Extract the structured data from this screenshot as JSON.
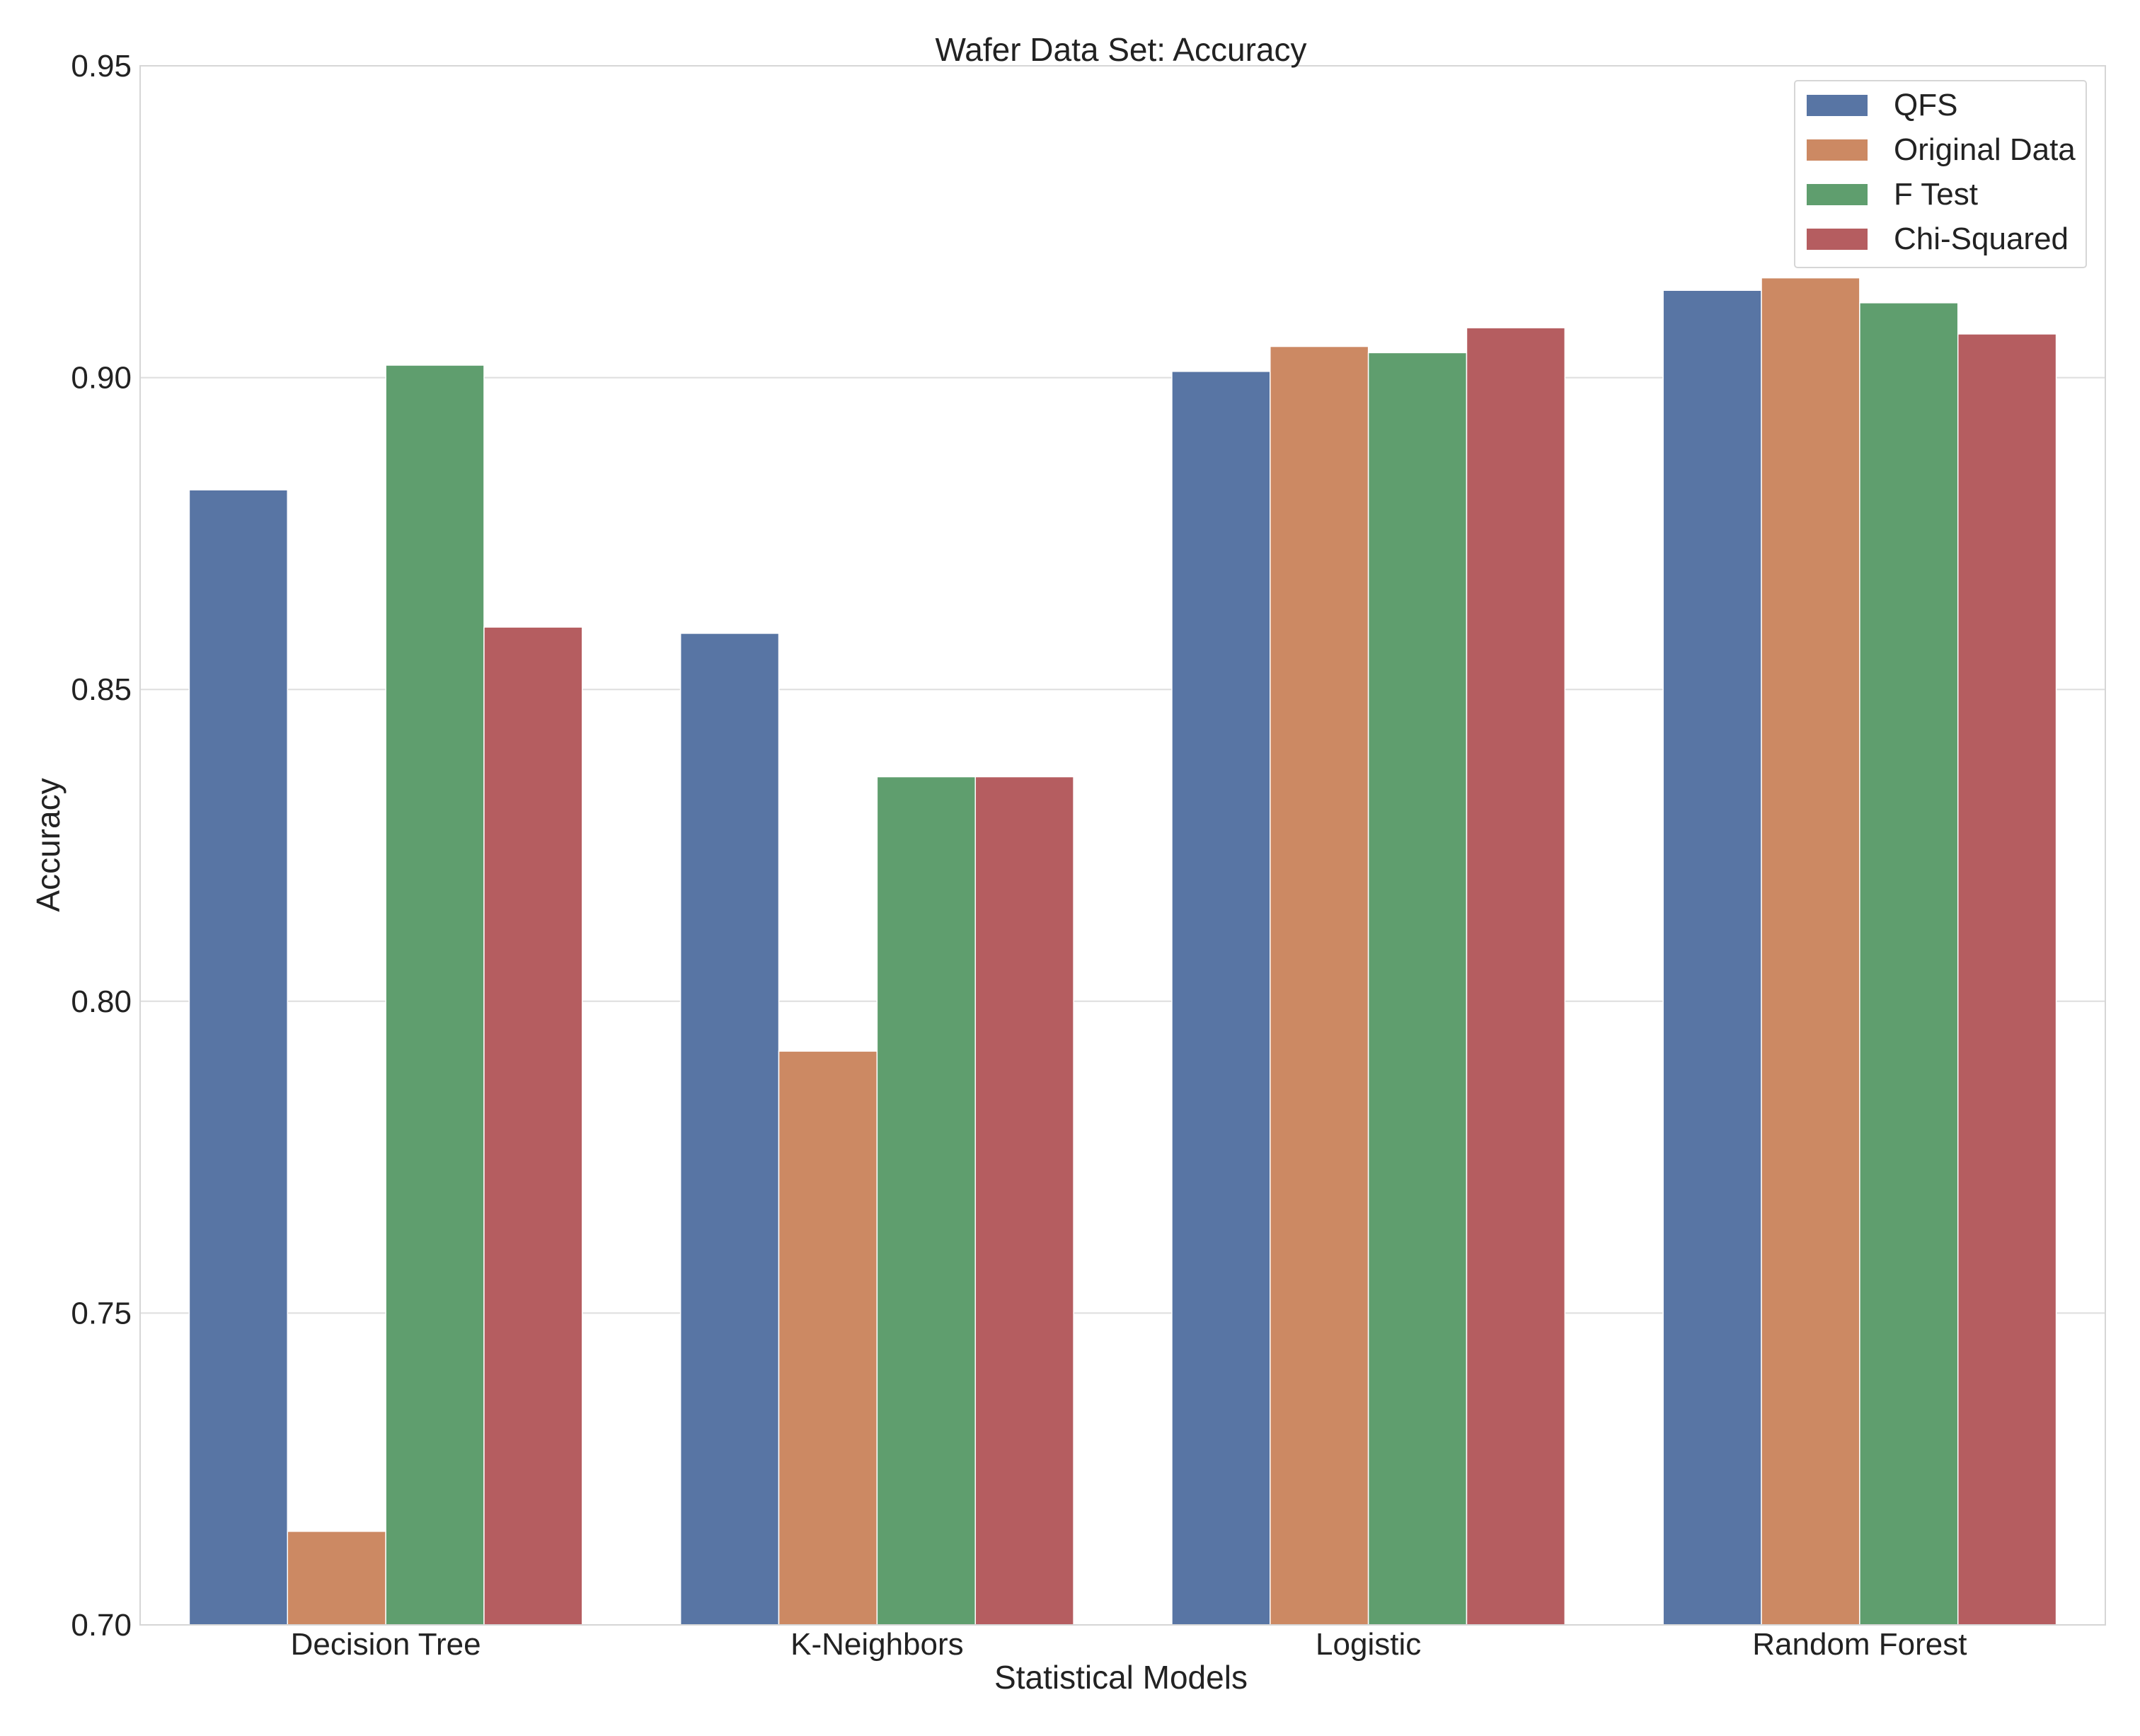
{
  "chart_data": {
    "type": "bar",
    "title": "Wafer Data Set: Accuracy",
    "xlabel": "Statistical Models",
    "ylabel": "Accuracy",
    "ylim": [
      0.7,
      0.95
    ],
    "yticks": [
      "0.70",
      "0.75",
      "0.80",
      "0.85",
      "0.90",
      "0.95"
    ],
    "ytick_values": [
      0.7,
      0.75,
      0.8,
      0.85,
      0.9,
      0.95
    ],
    "grid": true,
    "legend_position": "top-right",
    "categories": [
      "Decision Tree",
      "K-Neighbors",
      "Logistic",
      "Random Forest"
    ],
    "series": [
      {
        "name": "QFS",
        "color": "#5875a4",
        "values": [
          0.882,
          0.859,
          0.901,
          0.914
        ]
      },
      {
        "name": "Original Data",
        "color": "#cc8963",
        "values": [
          0.715,
          0.792,
          0.905,
          0.916
        ]
      },
      {
        "name": "F Test",
        "color": "#5f9e6e",
        "values": [
          0.902,
          0.836,
          0.904,
          0.912
        ]
      },
      {
        "name": "Chi-Squared",
        "color": "#b55d60",
        "values": [
          0.86,
          0.836,
          0.908,
          0.907
        ]
      }
    ]
  }
}
